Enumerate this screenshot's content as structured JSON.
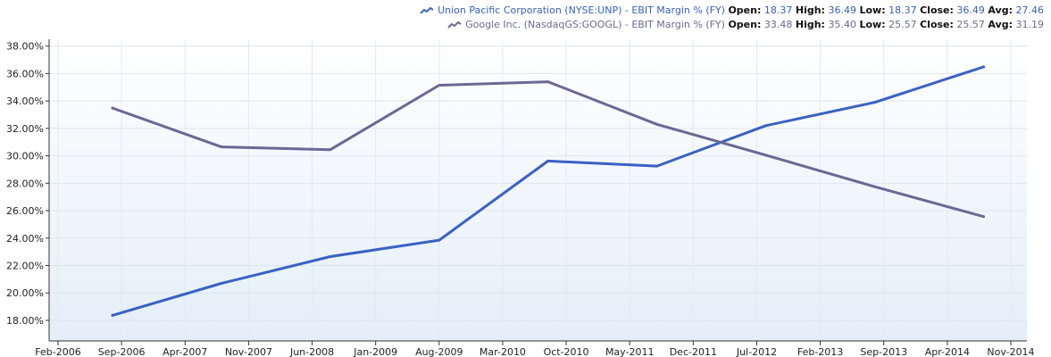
{
  "legend": {
    "items": [
      {
        "name": "Union Pacific Corporation (NYSE:UNP) - EBIT Margin % (FY)",
        "open_label": "Open:",
        "open": "18.37",
        "high_label": "High:",
        "high": "36.49",
        "low_label": "Low:",
        "low": "18.37",
        "close_label": "Close:",
        "close": "36.49",
        "avg_label": "Avg:",
        "avg": "27.46"
      },
      {
        "name": "Google Inc. (NasdaqGS:GOOGL) - EBIT Margin % (FY)",
        "open_label": "Open:",
        "open": "33.48",
        "high_label": "High:",
        "high": "35.40",
        "low_label": "Low:",
        "low": "25.57",
        "close_label": "Close:",
        "close": "25.57",
        "avg_label": "Avg:",
        "avg": "31.19"
      }
    ]
  },
  "chart_data": {
    "type": "line",
    "title": "",
    "xlabel": "",
    "ylabel": "",
    "grid": true,
    "legend_position": "top-right",
    "ylim": [
      16.5,
      38.5
    ],
    "xlim": [
      "2006-02",
      "2014-11"
    ],
    "y_ticks": [
      "18.00%",
      "20.00%",
      "22.00%",
      "24.00%",
      "26.00%",
      "28.00%",
      "30.00%",
      "32.00%",
      "34.00%",
      "36.00%",
      "38.00%"
    ],
    "x_ticks": [
      "Feb-2006",
      "Sep-2006",
      "Apr-2007",
      "Nov-2007",
      "Jun-2008",
      "Jan-2009",
      "Aug-2009",
      "Mar-2010",
      "Oct-2010",
      "May-2011",
      "Dec-2011",
      "Jul-2012",
      "Feb-2013",
      "Sep-2013",
      "Apr-2014",
      "Nov-2014"
    ],
    "series": [
      {
        "name": "Union Pacific Corporation (NYSE:UNP) - EBIT Margin % (FY)",
        "color": "#3a62c4",
        "points": [
          {
            "x": "2006-08",
            "y": 18.37
          },
          {
            "x": "2007-08",
            "y": 20.7
          },
          {
            "x": "2008-08",
            "y": 22.65
          },
          {
            "x": "2009-08",
            "y": 23.85
          },
          {
            "x": "2010-08",
            "y": 29.62
          },
          {
            "x": "2011-08",
            "y": 29.25
          },
          {
            "x": "2012-08",
            "y": 32.2
          },
          {
            "x": "2013-08",
            "y": 33.9
          },
          {
            "x": "2014-08",
            "y": 36.49
          }
        ]
      },
      {
        "name": "Google Inc. (NasdaqGS:GOOGL) - EBIT Margin % (FY)",
        "color": "#6b6896",
        "points": [
          {
            "x": "2006-08",
            "y": 33.48
          },
          {
            "x": "2007-08",
            "y": 30.65
          },
          {
            "x": "2008-08",
            "y": 30.45
          },
          {
            "x": "2009-08",
            "y": 35.15
          },
          {
            "x": "2010-08",
            "y": 35.4
          },
          {
            "x": "2011-08",
            "y": 32.3
          },
          {
            "x": "2012-08",
            "y": 30.05
          },
          {
            "x": "2013-08",
            "y": 27.75
          },
          {
            "x": "2014-08",
            "y": 25.57
          }
        ]
      }
    ]
  }
}
